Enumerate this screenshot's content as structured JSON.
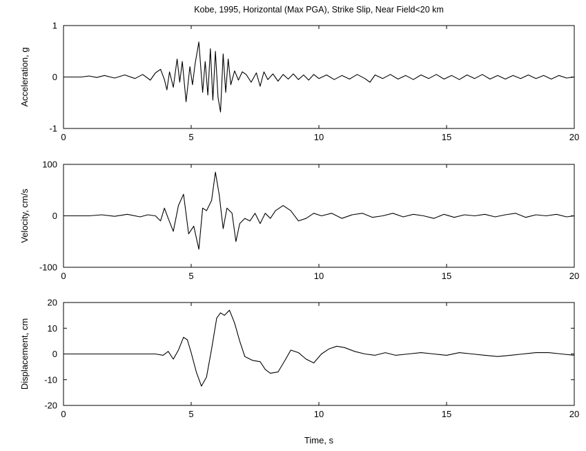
{
  "figure": {
    "title": "Kobe, 1995, Horizontal (Max PGA), Strike Slip, Near Field<20 km",
    "xlabel": "Time, s"
  },
  "chart_data": [
    {
      "type": "line",
      "ylabel": "Acceleration, g",
      "xlim": [
        0,
        20
      ],
      "ylim": [
        -1,
        1
      ],
      "xticks": [
        0,
        5,
        10,
        15,
        20
      ],
      "yticks": [
        -1,
        0,
        1
      ],
      "xtick_labels": [
        "0",
        "5",
        "10",
        "15",
        "20"
      ],
      "ytick_labels": [
        "-1",
        "0",
        "1"
      ],
      "grid": false,
      "series": [
        {
          "x": [
            0,
            0.7,
            1.0,
            1.3,
            1.6,
            2.0,
            2.4,
            2.8,
            3.1,
            3.4,
            3.6,
            3.8,
            3.95,
            4.05,
            4.15,
            4.3,
            4.45,
            4.55,
            4.65,
            4.8,
            4.95,
            5.05,
            5.15,
            5.3,
            5.45,
            5.55,
            5.65,
            5.75,
            5.85,
            5.95,
            6.05,
            6.15,
            6.25,
            6.35,
            6.45,
            6.55,
            6.7,
            6.85,
            7.0,
            7.15,
            7.35,
            7.55,
            7.7,
            7.85,
            8.0,
            8.2,
            8.4,
            8.6,
            8.8,
            9.0,
            9.2,
            9.4,
            9.6,
            9.8,
            10.0,
            10.3,
            10.6,
            10.9,
            11.2,
            11.5,
            11.8,
            12.0,
            12.2,
            12.5,
            12.8,
            13.1,
            13.4,
            13.7,
            14.0,
            14.3,
            14.6,
            14.9,
            15.2,
            15.5,
            15.8,
            16.1,
            16.4,
            16.7,
            17.0,
            17.3,
            17.6,
            17.9,
            18.2,
            18.5,
            18.8,
            19.1,
            19.4,
            19.7,
            20.0
          ],
          "y": [
            0,
            0,
            0.02,
            -0.01,
            0.03,
            -0.02,
            0.04,
            -0.03,
            0.05,
            -0.06,
            0.08,
            0.15,
            -0.05,
            -0.25,
            0.1,
            -0.2,
            0.35,
            -0.1,
            0.3,
            -0.48,
            0.2,
            -0.15,
            0.25,
            0.68,
            -0.3,
            0.3,
            -0.35,
            0.55,
            -0.45,
            0.5,
            -0.4,
            -0.68,
            0.45,
            -0.3,
            0.35,
            -0.15,
            0.12,
            -0.06,
            0.1,
            0.05,
            -0.1,
            0.08,
            -0.18,
            0.1,
            -0.05,
            0.06,
            -0.08,
            0.05,
            -0.04,
            0.06,
            -0.05,
            0.04,
            -0.06,
            0.05,
            -0.03,
            0.04,
            -0.05,
            0.03,
            -0.04,
            0.05,
            -0.03,
            -0.1,
            0.04,
            -0.03,
            0.05,
            -0.04,
            0.03,
            -0.05,
            0.04,
            -0.03,
            0.05,
            -0.04,
            0.03,
            -0.05,
            0.04,
            -0.03,
            0.05,
            -0.04,
            0.03,
            -0.04,
            0.03,
            -0.03,
            0.04,
            -0.03,
            0.03,
            -0.04,
            0.03,
            -0.02,
            0.0
          ]
        }
      ]
    },
    {
      "type": "line",
      "ylabel": "Velocity, cm/s",
      "xlim": [
        0,
        20
      ],
      "ylim": [
        -100,
        100
      ],
      "xticks": [
        0,
        5,
        10,
        15,
        20
      ],
      "yticks": [
        -100,
        0,
        100
      ],
      "xtick_labels": [
        "0",
        "5",
        "10",
        "15",
        "20"
      ],
      "ytick_labels": [
        "-100",
        "0",
        "100"
      ],
      "grid": false,
      "series": [
        {
          "x": [
            0,
            1.0,
            1.5,
            2.0,
            2.5,
            3.0,
            3.3,
            3.6,
            3.8,
            3.95,
            4.1,
            4.3,
            4.5,
            4.7,
            4.9,
            5.1,
            5.3,
            5.45,
            5.6,
            5.8,
            5.95,
            6.1,
            6.25,
            6.4,
            6.6,
            6.75,
            6.9,
            7.1,
            7.3,
            7.5,
            7.7,
            7.9,
            8.1,
            8.3,
            8.6,
            8.9,
            9.2,
            9.5,
            9.8,
            10.1,
            10.5,
            10.9,
            11.3,
            11.7,
            12.1,
            12.5,
            12.9,
            13.3,
            13.7,
            14.1,
            14.5,
            14.9,
            15.3,
            15.7,
            16.1,
            16.5,
            16.9,
            17.3,
            17.7,
            18.1,
            18.5,
            18.9,
            19.3,
            19.7,
            20.0
          ],
          "y": [
            0,
            0,
            2,
            -1,
            3,
            -2,
            2,
            0,
            -10,
            15,
            -5,
            -30,
            20,
            42,
            -35,
            -20,
            -65,
            15,
            10,
            30,
            85,
            40,
            -25,
            15,
            5,
            -50,
            -15,
            -5,
            -10,
            5,
            -15,
            5,
            -5,
            10,
            20,
            10,
            -10,
            -5,
            5,
            0,
            5,
            -5,
            2,
            5,
            -3,
            0,
            5,
            -2,
            3,
            0,
            -5,
            3,
            -3,
            2,
            0,
            3,
            -2,
            2,
            5,
            -3,
            2,
            0,
            3,
            -2,
            0
          ]
        }
      ]
    },
    {
      "type": "line",
      "ylabel": "Displacement, cm",
      "xlim": [
        0,
        20
      ],
      "ylim": [
        -20,
        20
      ],
      "xticks": [
        0,
        5,
        10,
        15,
        20
      ],
      "yticks": [
        -20,
        -10,
        0,
        10,
        20
      ],
      "xtick_labels": [
        "0",
        "5",
        "10",
        "15",
        "20"
      ],
      "ytick_labels": [
        "-20",
        "-10",
        "0",
        "10",
        "20"
      ],
      "grid": false,
      "series": [
        {
          "x": [
            0,
            3.6,
            3.9,
            4.1,
            4.3,
            4.5,
            4.7,
            4.85,
            5.0,
            5.2,
            5.4,
            5.6,
            5.8,
            6.0,
            6.15,
            6.3,
            6.5,
            6.7,
            6.9,
            7.1,
            7.4,
            7.7,
            7.9,
            8.1,
            8.4,
            8.7,
            8.9,
            9.2,
            9.5,
            9.8,
            10.1,
            10.4,
            10.7,
            11.0,
            11.4,
            11.8,
            12.2,
            12.6,
            13.0,
            13.5,
            14.0,
            14.5,
            15.0,
            15.5,
            16.0,
            16.5,
            17.0,
            17.5,
            18.0,
            18.5,
            19.0,
            19.5,
            20.0
          ],
          "y": [
            0,
            0,
            -0.5,
            1.0,
            -2.0,
            1.5,
            6.5,
            5.5,
            0.5,
            -7.0,
            -12.5,
            -9.0,
            2.0,
            14.0,
            16.0,
            15.0,
            17.0,
            12.0,
            5.0,
            -1.0,
            -2.5,
            -3.0,
            -6.0,
            -7.5,
            -7.0,
            -2.0,
            1.5,
            0.5,
            -2.0,
            -3.5,
            0.0,
            2.0,
            3.0,
            2.5,
            1.0,
            0.0,
            -0.5,
            0.5,
            -0.5,
            0.0,
            0.5,
            0.0,
            -0.5,
            0.5,
            0.0,
            -0.5,
            -1.0,
            -0.5,
            0.0,
            0.5,
            0.5,
            0.0,
            -0.5
          ]
        }
      ]
    }
  ]
}
